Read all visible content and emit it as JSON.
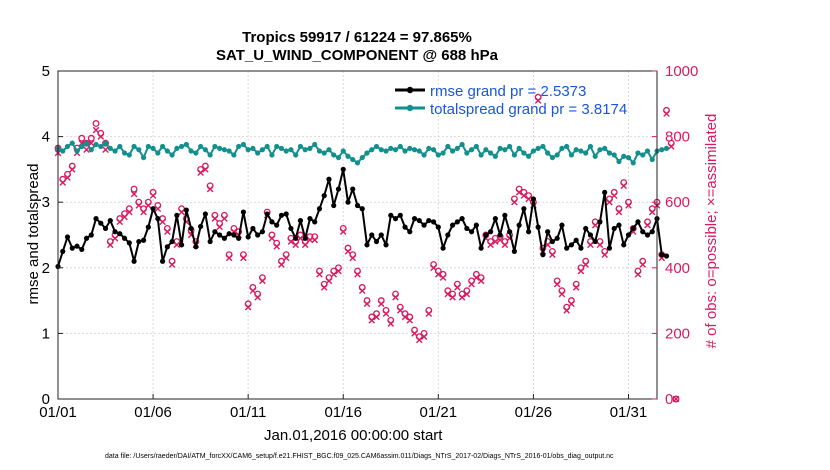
{
  "chart_data": {
    "type": "line",
    "title_line1": "Tropics 59917 / 61224 = 97.865%",
    "title_line2": "SAT_U_WIND_COMPONENT @ 688 hPa",
    "xlabel": "Jan.01,2016 00:00:00 start",
    "ylabel": "rmse and totalspread",
    "ylabel_right": "# of obs: o=possible; ×=assimilated",
    "xlim": [
      0,
      31.5
    ],
    "ylim": [
      0,
      5
    ],
    "ylim_right": [
      0,
      1000
    ],
    "x_tick_values": [
      0,
      5,
      10,
      15,
      20,
      25,
      30
    ],
    "x_tick_labels": [
      "01/01",
      "01/06",
      "01/11",
      "01/16",
      "01/21",
      "01/26",
      "01/31"
    ],
    "y_ticks": [
      "0",
      "1",
      "2",
      "3",
      "4",
      "5"
    ],
    "y_ticks_right": [
      "0",
      "200",
      "400",
      "600",
      "800",
      "1000"
    ],
    "grid": true,
    "legend_position": "top-right",
    "x_step_days": 0.25,
    "series": [
      {
        "name": "rmse grand pr = 2.5373",
        "color": "#000000",
        "axis": "left",
        "values": [
          2.02,
          2.25,
          2.47,
          2.3,
          2.33,
          2.28,
          2.45,
          2.5,
          2.75,
          2.68,
          2.6,
          2.72,
          2.55,
          2.52,
          2.45,
          2.38,
          2.1,
          2.4,
          2.42,
          2.62,
          2.9,
          2.75,
          2.1,
          2.32,
          2.4,
          2.8,
          2.35,
          2.88,
          2.6,
          2.32,
          2.63,
          2.82,
          2.4,
          2.55,
          2.5,
          2.45,
          2.52,
          2.5,
          2.45,
          2.85,
          2.47,
          2.6,
          2.5,
          2.55,
          2.82,
          2.7,
          2.65,
          2.8,
          2.82,
          2.6,
          2.45,
          2.72,
          2.45,
          2.75,
          2.7,
          2.9,
          3.1,
          3.35,
          2.95,
          3.2,
          3.5,
          3.0,
          3.2,
          2.95,
          2.9,
          2.35,
          2.5,
          2.4,
          2.5,
          2.35,
          2.8,
          2.75,
          2.8,
          2.62,
          2.55,
          2.75,
          2.72,
          2.65,
          2.72,
          2.7,
          2.62,
          2.3,
          2.5,
          2.65,
          2.7,
          2.75,
          2.6,
          2.55,
          2.65,
          2.3,
          2.5,
          2.55,
          2.75,
          2.5,
          2.8,
          2.55,
          2.25,
          2.65,
          2.9,
          2.55,
          3.05,
          2.62,
          2.2,
          2.55,
          2.4,
          2.45,
          2.65,
          2.3,
          2.35,
          2.42,
          2.3,
          2.6,
          2.5,
          2.4,
          2.7,
          3.15,
          2.3,
          2.6,
          2.65,
          2.35,
          2.5,
          2.6,
          2.7,
          2.55,
          2.5,
          2.55,
          2.75,
          2.2,
          2.18
        ]
      },
      {
        "name": "totalspread grand pr = 3.8174",
        "color": "#12908e",
        "axis": "left",
        "values": [
          3.82,
          3.78,
          3.85,
          3.9,
          3.78,
          3.85,
          3.9,
          3.8,
          3.88,
          3.85,
          3.9,
          3.82,
          3.78,
          3.85,
          3.75,
          3.72,
          3.85,
          3.8,
          3.68,
          3.85,
          3.82,
          3.75,
          3.85,
          3.78,
          3.72,
          3.82,
          3.85,
          3.88,
          3.78,
          3.75,
          3.85,
          3.8,
          3.72,
          3.85,
          3.82,
          3.8,
          3.78,
          3.72,
          3.85,
          3.88,
          3.8,
          3.82,
          3.75,
          3.8,
          3.85,
          3.72,
          3.85,
          3.82,
          3.78,
          3.8,
          3.72,
          3.85,
          3.8,
          3.82,
          3.88,
          3.78,
          3.75,
          3.8,
          3.72,
          3.68,
          3.78,
          3.7,
          3.65,
          3.6,
          3.68,
          3.75,
          3.8,
          3.85,
          3.8,
          3.78,
          3.82,
          3.8,
          3.85,
          3.78,
          3.82,
          3.8,
          3.78,
          3.72,
          3.82,
          3.8,
          3.72,
          3.75,
          3.85,
          3.78,
          3.82,
          3.88,
          3.75,
          3.8,
          3.85,
          3.72,
          3.8,
          3.75,
          3.7,
          3.82,
          3.8,
          3.85,
          3.72,
          3.82,
          3.75,
          3.7,
          3.78,
          3.82,
          3.85,
          3.75,
          3.68,
          3.72,
          3.82,
          3.85,
          3.72,
          3.8,
          3.78,
          3.75,
          3.85,
          3.7,
          3.8,
          3.82,
          3.75,
          3.72,
          3.62,
          3.7,
          3.68,
          3.6,
          3.75,
          3.72,
          3.78,
          3.65,
          3.78,
          3.8,
          3.82
        ]
      }
    ],
    "obs_counts": {
      "color": "#d81b60",
      "axis": "right",
      "possible_name": "possible",
      "assimilated_name": "assimilated",
      "possible": [
        765,
        670,
        685,
        710,
        765,
        795,
        780,
        795,
        840,
        810,
        780,
        480,
        500,
        550,
        565,
        580,
        640,
        600,
        580,
        600,
        630,
        590,
        550,
        520,
        420,
        480,
        580,
        550,
        515,
        480,
        700,
        710,
        650,
        560,
        535,
        560,
        440,
        520,
        510,
        440,
        290,
        340,
        320,
        370,
        570,
        500,
        475,
        420,
        440,
        490,
        480,
        500,
        480,
        495,
        495,
        390,
        350,
        370,
        390,
        400,
        520,
        460,
        440,
        390,
        340,
        300,
        250,
        260,
        300,
        270,
        240,
        320,
        280,
        260,
        250,
        210,
        190,
        200,
        270,
        410,
        390,
        380,
        330,
        320,
        350,
        320,
        330,
        360,
        380,
        370,
        500,
        480,
        490,
        495,
        480,
        500,
        610,
        640,
        630,
        620,
        600,
        920,
        460,
        480,
        450,
        360,
        330,
        280,
        300,
        350,
        400,
        420,
        480,
        540,
        480,
        450,
        610,
        630,
        580,
        660,
        600,
        520,
        390,
        420,
        540,
        580,
        600,
        440,
        880,
        780,
        0
      ],
      "assimilated": [
        750,
        660,
        675,
        700,
        750,
        780,
        760,
        780,
        820,
        800,
        760,
        470,
        490,
        540,
        555,
        570,
        625,
        590,
        570,
        590,
        620,
        580,
        540,
        510,
        410,
        470,
        570,
        540,
        500,
        470,
        690,
        700,
        640,
        550,
        525,
        550,
        430,
        510,
        500,
        430,
        280,
        330,
        310,
        360,
        560,
        490,
        465,
        410,
        430,
        480,
        470,
        490,
        470,
        485,
        485,
        380,
        340,
        360,
        380,
        390,
        510,
        450,
        430,
        380,
        330,
        290,
        240,
        250,
        290,
        260,
        230,
        310,
        270,
        250,
        240,
        200,
        180,
        190,
        260,
        400,
        380,
        370,
        320,
        310,
        340,
        310,
        320,
        350,
        370,
        360,
        490,
        470,
        480,
        485,
        470,
        490,
        600,
        630,
        620,
        610,
        590,
        910,
        450,
        470,
        440,
        350,
        320,
        270,
        290,
        340,
        390,
        410,
        470,
        530,
        470,
        440,
        600,
        620,
        570,
        650,
        590,
        510,
        380,
        410,
        530,
        570,
        590,
        430,
        870,
        770,
        0
      ]
    }
  },
  "footer": "data file: /Users/raeder/DAI/ATM_forcXX/CAM6_setup/f.e21.FHIST_BGC.f09_025.CAM6assim.011/Diags_NTrS_2017-02/Diags_NTrS_2016-01/obs_diag_output.nc"
}
